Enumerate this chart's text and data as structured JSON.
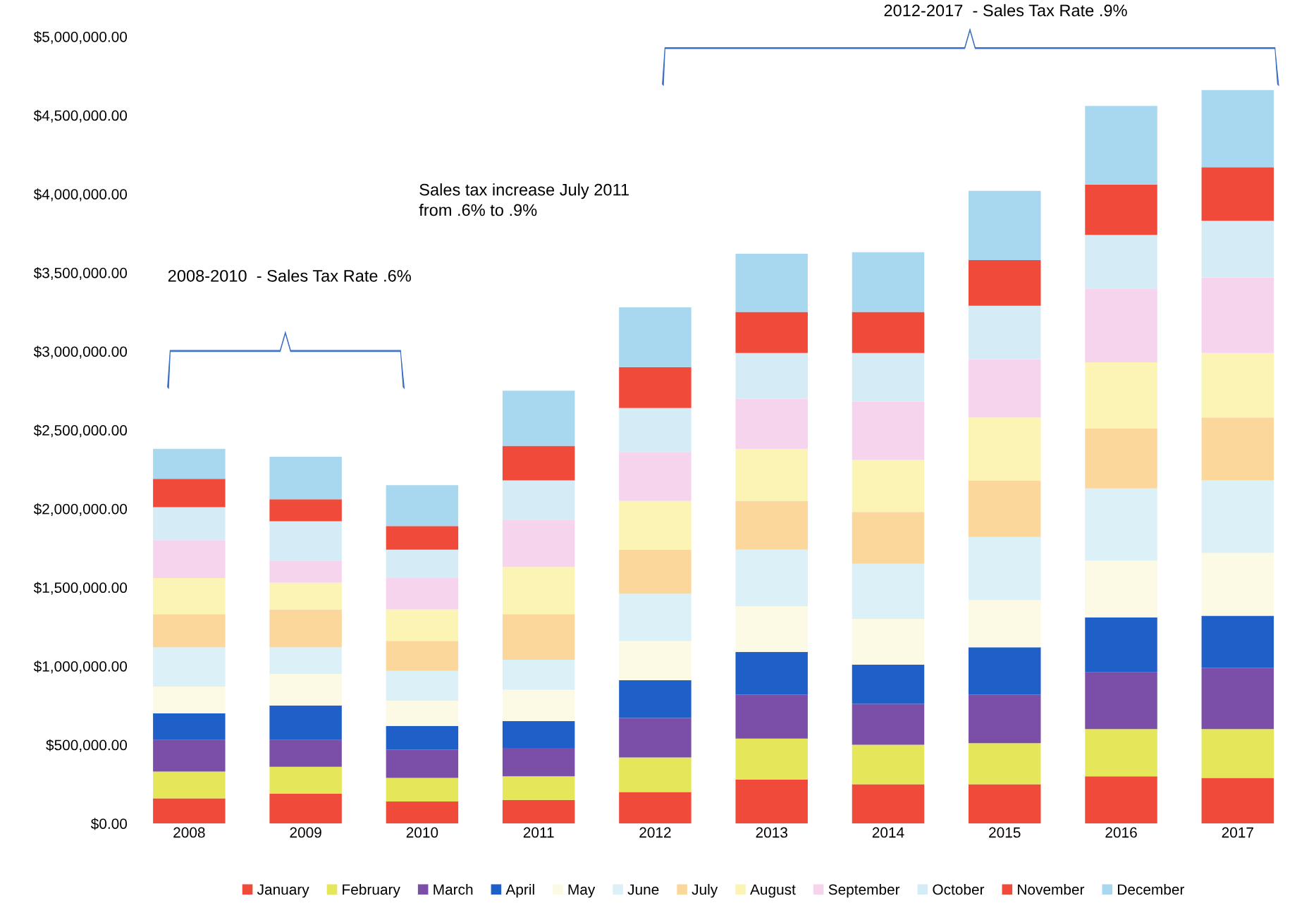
{
  "chart_data": {
    "type": "bar",
    "stacked": true,
    "categories": [
      "2008",
      "2009",
      "2010",
      "2011",
      "2012",
      "2013",
      "2014",
      "2015",
      "2016",
      "2017"
    ],
    "series": [
      {
        "name": "January",
        "color": "#f04a3a",
        "values": [
          160000,
          190000,
          140000,
          150000,
          200000,
          280000,
          250000,
          250000,
          300000,
          290000
        ]
      },
      {
        "name": "February",
        "color": "#e6e65a",
        "values": [
          170000,
          170000,
          150000,
          150000,
          220000,
          260000,
          250000,
          260000,
          300000,
          310000
        ]
      },
      {
        "name": "March",
        "color": "#7b4fa8",
        "values": [
          200000,
          170000,
          180000,
          180000,
          250000,
          280000,
          260000,
          310000,
          360000,
          390000
        ]
      },
      {
        "name": "April",
        "color": "#1f5fc8",
        "values": [
          170000,
          220000,
          150000,
          170000,
          240000,
          270000,
          250000,
          300000,
          350000,
          330000
        ]
      },
      {
        "name": "May",
        "color": "#fcf9e4",
        "values": [
          170000,
          200000,
          160000,
          200000,
          250000,
          290000,
          290000,
          300000,
          360000,
          400000
        ]
      },
      {
        "name": "June",
        "color": "#dcf0f8",
        "values": [
          250000,
          170000,
          190000,
          190000,
          300000,
          360000,
          350000,
          400000,
          460000,
          460000
        ]
      },
      {
        "name": "July",
        "color": "#fbd79c",
        "values": [
          210000,
          240000,
          190000,
          290000,
          280000,
          310000,
          330000,
          360000,
          380000,
          400000
        ]
      },
      {
        "name": "August",
        "color": "#fcf4b4",
        "values": [
          230000,
          170000,
          200000,
          300000,
          310000,
          330000,
          330000,
          400000,
          420000,
          410000
        ]
      },
      {
        "name": "September",
        "color": "#f6d4ee",
        "values": [
          240000,
          140000,
          200000,
          300000,
          310000,
          320000,
          370000,
          370000,
          470000,
          480000
        ]
      },
      {
        "name": "October",
        "color": "#d5ecf6",
        "values": [
          210000,
          250000,
          180000,
          250000,
          280000,
          290000,
          310000,
          340000,
          340000,
          360000
        ]
      },
      {
        "name": "November",
        "color": "#f04a3a",
        "values": [
          180000,
          140000,
          150000,
          220000,
          260000,
          260000,
          260000,
          290000,
          320000,
          340000
        ]
      },
      {
        "name": "December",
        "color": "#a8d8f0",
        "values": [
          190000,
          270000,
          260000,
          350000,
          380000,
          370000,
          380000,
          440000,
          500000,
          490000
        ]
      }
    ],
    "ylim": [
      0,
      5000000
    ],
    "yticks": [
      {
        "value": 0,
        "label": "$0.00"
      },
      {
        "value": 500000,
        "label": "$500,000.00"
      },
      {
        "value": 1000000,
        "label": "$1,000,000.00"
      },
      {
        "value": 1500000,
        "label": "$1,500,000.00"
      },
      {
        "value": 2000000,
        "label": "$2,000,000.00"
      },
      {
        "value": 2500000,
        "label": "$2,500,000.00"
      },
      {
        "value": 3000000,
        "label": "$3,000,000.00"
      },
      {
        "value": 3500000,
        "label": "$3,500,000.00"
      },
      {
        "value": 4000000,
        "label": "$4,000,000.00"
      },
      {
        "value": 4500000,
        "label": "$4,500,000.00"
      },
      {
        "value": 5000000,
        "label": "$5,000,000.00"
      }
    ],
    "annotations": [
      "2008-2010  - Sales Tax Rate .6%",
      "Sales tax increase July 2011\nfrom .6% to .9%",
      "2012-2017  - Sales Tax Rate .9%"
    ],
    "grid": false,
    "legend": "bottom"
  }
}
